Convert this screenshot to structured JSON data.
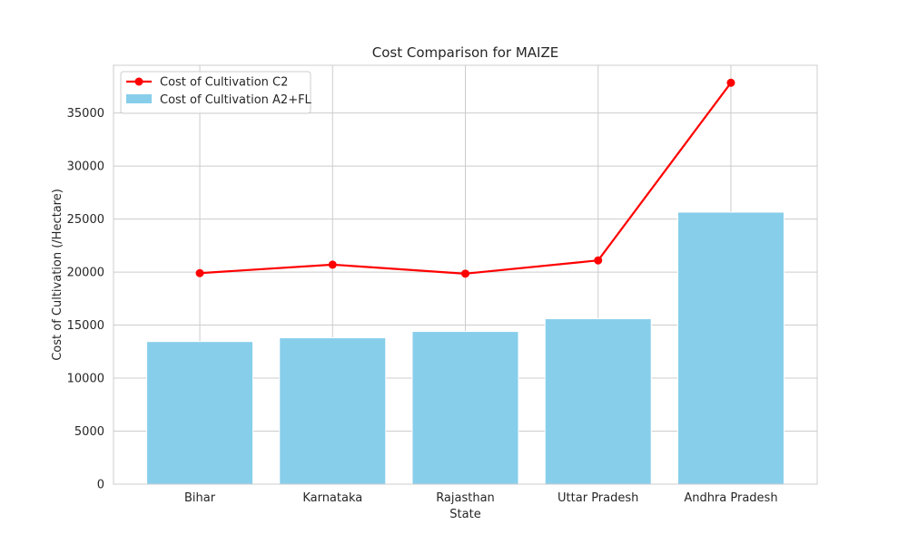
{
  "chart_data": {
    "type": "bar",
    "title": "Cost Comparison for MAIZE",
    "xlabel": "State",
    "ylabel": "Cost of Cultivation (/Hectare)",
    "categories": [
      "Bihar",
      "Karnataka",
      "Rajasthan",
      "Uttar Pradesh",
      "Andhra Pradesh"
    ],
    "ylim": [
      0,
      39500
    ],
    "yticks": [
      0,
      5000,
      10000,
      15000,
      20000,
      25000,
      30000,
      35000
    ],
    "grid": true,
    "legend_position": "top-left",
    "series": [
      {
        "name": "Cost of Cultivation A2+FL",
        "type": "bar",
        "color": "#87ceeb",
        "values": [
          13450,
          13800,
          14400,
          15600,
          25650
        ]
      },
      {
        "name": "Cost of Cultivation C2",
        "type": "line",
        "color": "#ff0000",
        "values": [
          19900,
          20700,
          19850,
          21100,
          37850
        ]
      }
    ]
  }
}
